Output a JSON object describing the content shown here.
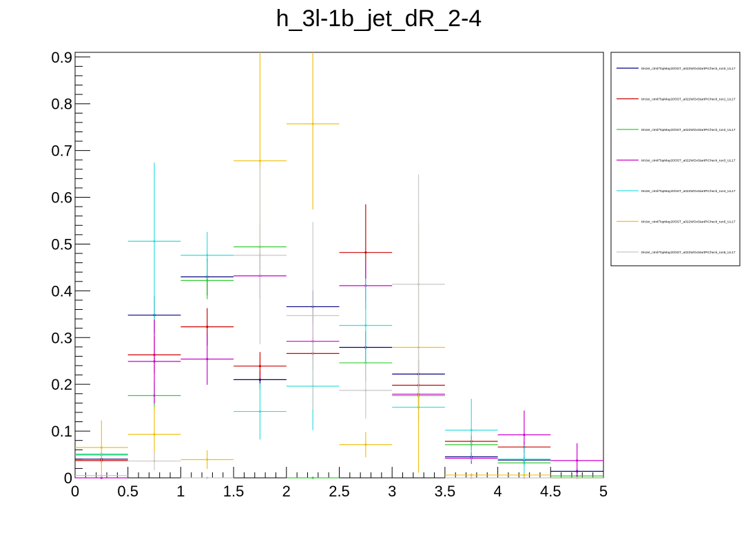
{
  "chart_data": {
    "type": "scatter",
    "title": "h_3l-1b_jet_dR_2-4",
    "xlabel": "",
    "ylabel": "",
    "xlim": [
      0,
      5
    ],
    "ylim": [
      0,
      0.91
    ],
    "x_ticks": [
      "0",
      "0.5",
      "1",
      "1.5",
      "2",
      "2.5",
      "3",
      "3.5",
      "4",
      "4.5",
      "5"
    ],
    "y_ticks": [
      "0",
      "0.1",
      "0.2",
      "0.3",
      "0.4",
      "0.5",
      "0.6",
      "0.7",
      "0.8",
      "0.9"
    ],
    "grid": false,
    "legend_position": "top-right",
    "bin_edges": [
      0,
      0.5,
      1,
      1.5,
      2,
      2.5,
      3,
      3.5,
      4,
      4.5,
      5
    ],
    "series": [
      {
        "name": "ttHJet_ctrnl/TopMay20/3ST_a022WOxStartPICheck_run0_UL17",
        "color": "#00007f",
        "values": [
          0.04,
          0.348,
          0.43,
          0.21,
          0.366,
          0.279,
          0.222,
          0.045,
          0.038,
          0.014
        ],
        "errors": [
          0.005,
          0.04,
          0.04,
          0.02,
          0.035,
          0.035,
          0.03,
          0.01,
          0.01,
          0.005
        ]
      },
      {
        "name": "ttHJet_ctrnl/TopMay20/3ST_a022WOxStartPICheck_run1_UL17",
        "color": "#cc0000",
        "values": [
          0.037,
          0.263,
          0.323,
          0.239,
          0.266,
          0.482,
          0.198,
          0.078,
          0.066,
          0.0
        ],
        "errors": [
          0.006,
          0.04,
          0.04,
          0.03,
          0.035,
          0.103,
          0.03,
          0.012,
          0.012,
          0.0
        ]
      },
      {
        "name": "ttHJet_ctrnl/TopMay20/3ST_a022WOxStartPICheck_run2_UL17",
        "color": "#33cc33",
        "values": [
          0.049,
          0.176,
          0.422,
          0.494,
          0.0,
          0.246,
          0.176,
          0.071,
          0.032,
          0.004
        ],
        "errors": [
          0.006,
          0.03,
          0.04,
          0.05,
          0.0,
          0.04,
          0.03,
          0.012,
          0.008,
          0.003
        ]
      },
      {
        "name": "ttHJet_ctrnl/TopMay20/3ST_a022WOxStartPICheck_run3_UL17",
        "color": "#cc00cc",
        "values": [
          0.0,
          0.249,
          0.254,
          0.432,
          0.292,
          0.411,
          0.179,
          0.042,
          0.092,
          0.037
        ],
        "errors": [
          0.0,
          0.09,
          0.055,
          0.05,
          0.04,
          0.05,
          0.03,
          0.012,
          0.052,
          0.037
        ]
      },
      {
        "name": "ttHJet_ctrnl/TopMay20/3ST_a022WOxStartPICheck_run4_UL17",
        "color": "#33dddd",
        "values": [
          0.051,
          0.506,
          0.476,
          0.142,
          0.196,
          0.326,
          0.151,
          0.102,
          0.04,
          0.0
        ],
        "errors": [
          0.006,
          0.168,
          0.05,
          0.06,
          0.094,
          0.1,
          0.03,
          0.067,
          0.03,
          0.0
        ]
      },
      {
        "name": "ttHJet_ctrnl/TopMay20/3ST_a022WOxStartPICheck_run5_UL17",
        "color": "#f0c010",
        "values": [
          0.065,
          0.093,
          0.039,
          0.678,
          0.757,
          0.071,
          0.279,
          0.006,
          0.006,
          0.0
        ],
        "errors": [
          0.058,
          0.06,
          0.02,
          0.232,
          0.183,
          0.027,
          0.268,
          0.004,
          0.004,
          0.0
        ]
      },
      {
        "name": "ttHJet_ctrnl/TopMay20/3ST_a022WOxStartPICheck_run6_UL17",
        "color": "#c8c8c8",
        "values": [
          0.005,
          0.036,
          0.0,
          0.476,
          0.347,
          0.187,
          0.414,
          0.0,
          0.0,
          0.0
        ],
        "errors": [
          0.004,
          0.02,
          0.0,
          0.19,
          0.2,
          0.06,
          0.235,
          0.0,
          0.0,
          0.0
        ]
      }
    ]
  }
}
